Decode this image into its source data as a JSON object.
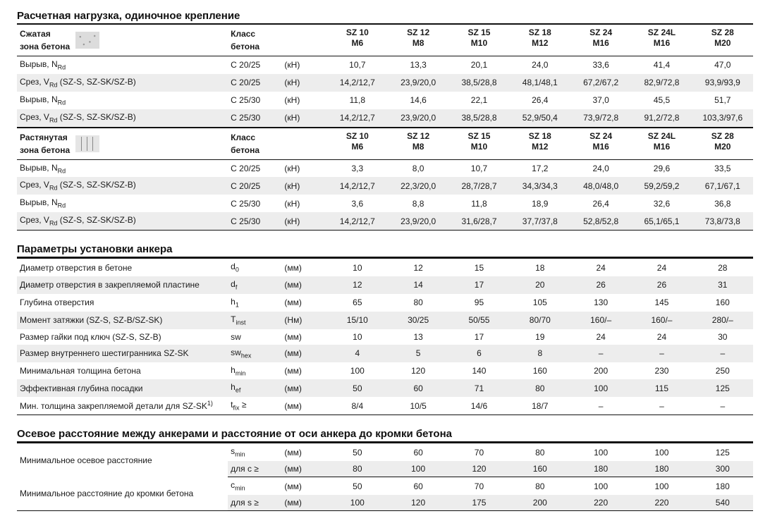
{
  "sizes": [
    "SZ 10",
    "SZ 12",
    "SZ 15",
    "SZ 18",
    "SZ 24",
    "SZ 24L",
    "SZ 28"
  ],
  "threads": [
    "M6",
    "M8",
    "M10",
    "M12",
    "M16",
    "M16",
    "M20"
  ],
  "S1": {
    "title": "Расчетная нагрузка, одиночное крепление",
    "H1_zone1": "Сжатая",
    "H1_zone2": "зона бетона",
    "H1_cls1": "Класс",
    "H1_cls2": "бетона",
    "H2_zone1": "Растянутая",
    "H2_zone2": "зона бетона",
    "rows_A": [
      {
        "l": "Вырыв, N",
        "lsub": "Rd",
        "cls": "C 20/25",
        "u": "(кН)",
        "v": [
          "10,7",
          "13,3",
          "20,1",
          "24,0",
          "33,6",
          "41,4",
          "47,0"
        ]
      },
      {
        "l": "Срез, V",
        "lsub": "Rd",
        "lpost": " (SZ-S, SZ-SK/SZ-B)",
        "cls": "C 20/25",
        "u": "(кН)",
        "v": [
          "14,2/12,7",
          "23,9/20,0",
          "38,5/28,8",
          "48,1/48,1",
          "67,2/67,2",
          "82,9/72,8",
          "93,9/93,9"
        ]
      },
      {
        "l": "Вырыв, N",
        "lsub": "Rd",
        "cls": "C 25/30",
        "u": "(кН)",
        "v": [
          "11,8",
          "14,6",
          "22,1",
          "26,4",
          "37,0",
          "45,5",
          "51,7"
        ]
      },
      {
        "l": "Срез, V",
        "lsub": "Rd",
        "lpost": " (SZ-S, SZ-SK/SZ-B)",
        "cls": "C 25/30",
        "u": "(кН)",
        "v": [
          "14,2/12,7",
          "23,9/20,0",
          "38,5/28,8",
          "52,9/50,4",
          "73,9/72,8",
          "91,2/72,8",
          "103,3/97,6"
        ]
      }
    ],
    "rows_B": [
      {
        "l": "Вырыв, N",
        "lsub": "Rd",
        "cls": "C 20/25",
        "u": "(кН)",
        "v": [
          "3,3",
          "8,0",
          "10,7",
          "17,2",
          "24,0",
          "29,6",
          "33,5"
        ]
      },
      {
        "l": "Срез, V",
        "lsub": "Rd",
        "lpost": " (SZ-S, SZ-SK/SZ-B)",
        "cls": "C 20/25",
        "u": "(кН)",
        "v": [
          "14,2/12,7",
          "22,3/20,0",
          "28,7/28,7",
          "34,3/34,3",
          "48,0/48,0",
          "59,2/59,2",
          "67,1/67,1"
        ]
      },
      {
        "l": "Вырыв, N",
        "lsub": "Rd",
        "cls": "C 25/30",
        "u": "(кН)",
        "v": [
          "3,6",
          "8,8",
          "11,8",
          "18,9",
          "26,4",
          "32,6",
          "36,8"
        ]
      },
      {
        "l": "Срез, V",
        "lsub": "Rd",
        "lpost": " (SZ-S, SZ-SK/SZ-B)",
        "cls": "C 25/30",
        "u": "(кН)",
        "v": [
          "14,2/12,7",
          "23,9/20,0",
          "31,6/28,7",
          "37,7/37,8",
          "52,8/52,8",
          "65,1/65,1",
          "73,8/73,8"
        ]
      }
    ]
  },
  "S2": {
    "title": "Параметры установки анкера",
    "rows": [
      {
        "l": "Диаметр отверстия в бетоне",
        "sym": "d",
        "symsub": "0",
        "u": "(мм)",
        "v": [
          "10",
          "12",
          "15",
          "18",
          "24",
          "24",
          "28"
        ]
      },
      {
        "l": "Диаметр отверстия в закрепляемой пластине",
        "sym": "d",
        "symsub": "f",
        "u": "(мм)",
        "v": [
          "12",
          "14",
          "17",
          "20",
          "26",
          "26",
          "31"
        ]
      },
      {
        "l": "Глубина отверстия",
        "sym": "h",
        "symsub": "1",
        "u": "(мм)",
        "v": [
          "65",
          "80",
          "95",
          "105",
          "130",
          "145",
          "160"
        ]
      },
      {
        "l": "Момент затяжки (SZ-S, SZ-B/SZ-SK)",
        "sym": "T",
        "symsub": "inst",
        "u": "(Нм)",
        "v": [
          "15/10",
          "30/25",
          "50/55",
          "80/70",
          "160/–",
          "160/–",
          "280/–"
        ]
      },
      {
        "l": "Размер гайки под ключ (SZ-S, SZ-B)",
        "sym": "sw",
        "u": "(мм)",
        "v": [
          "10",
          "13",
          "17",
          "19",
          "24",
          "24",
          "30"
        ]
      },
      {
        "l": "Размер внутреннего шестигранника SZ-SK",
        "sym": "sw",
        "symsub": "hex",
        "u": "(мм)",
        "v": [
          "4",
          "5",
          "6",
          "8",
          "–",
          "–",
          "–"
        ]
      },
      {
        "l": "Минимальная толщина бетона",
        "sym": "h",
        "symsub": "min",
        "u": "(мм)",
        "v": [
          "100",
          "120",
          "140",
          "160",
          "200",
          "230",
          "250"
        ]
      },
      {
        "l": "Эффективная глубина посадки",
        "sym": "h",
        "symsub": "ef",
        "u": "(мм)",
        "v": [
          "50",
          "60",
          "71",
          "80",
          "100",
          "115",
          "125"
        ]
      },
      {
        "l": "Мин. толщина закрепляемой детали для SZ-SK",
        "lsup": "1)",
        "sym": "t",
        "symsub": "fix",
        "sympost": " ≥",
        "u": "(мм)",
        "v": [
          "8/4",
          "10/5",
          "14/6",
          "18/7",
          "–",
          "–",
          "–"
        ]
      }
    ]
  },
  "S3": {
    "title": "Осевое расстояние между анкерами и расстояние от оси анкера до кромки бетона",
    "group1_label": "Минимальное осевое расстояние",
    "group2_label": "Минимальное расстояние до кромки бетона",
    "rows": [
      {
        "sym": "s",
        "symsub": "min",
        "u": "(мм)",
        "v": [
          "50",
          "60",
          "70",
          "80",
          "100",
          "100",
          "125"
        ]
      },
      {
        "sym": "для с ≥",
        "u": "(мм)",
        "v": [
          "80",
          "100",
          "120",
          "160",
          "180",
          "180",
          "300"
        ]
      },
      {
        "sym": "c",
        "symsub": "min",
        "u": "(мм)",
        "v": [
          "50",
          "60",
          "70",
          "80",
          "100",
          "100",
          "180"
        ]
      },
      {
        "sym": "для s ≥",
        "u": "(мм)",
        "v": [
          "100",
          "120",
          "175",
          "200",
          "220",
          "220",
          "540"
        ]
      }
    ]
  },
  "style": {
    "rule_color": "#111111",
    "stripe_color": "#ededed",
    "font_size_body": 12,
    "font_size_title": 15
  }
}
